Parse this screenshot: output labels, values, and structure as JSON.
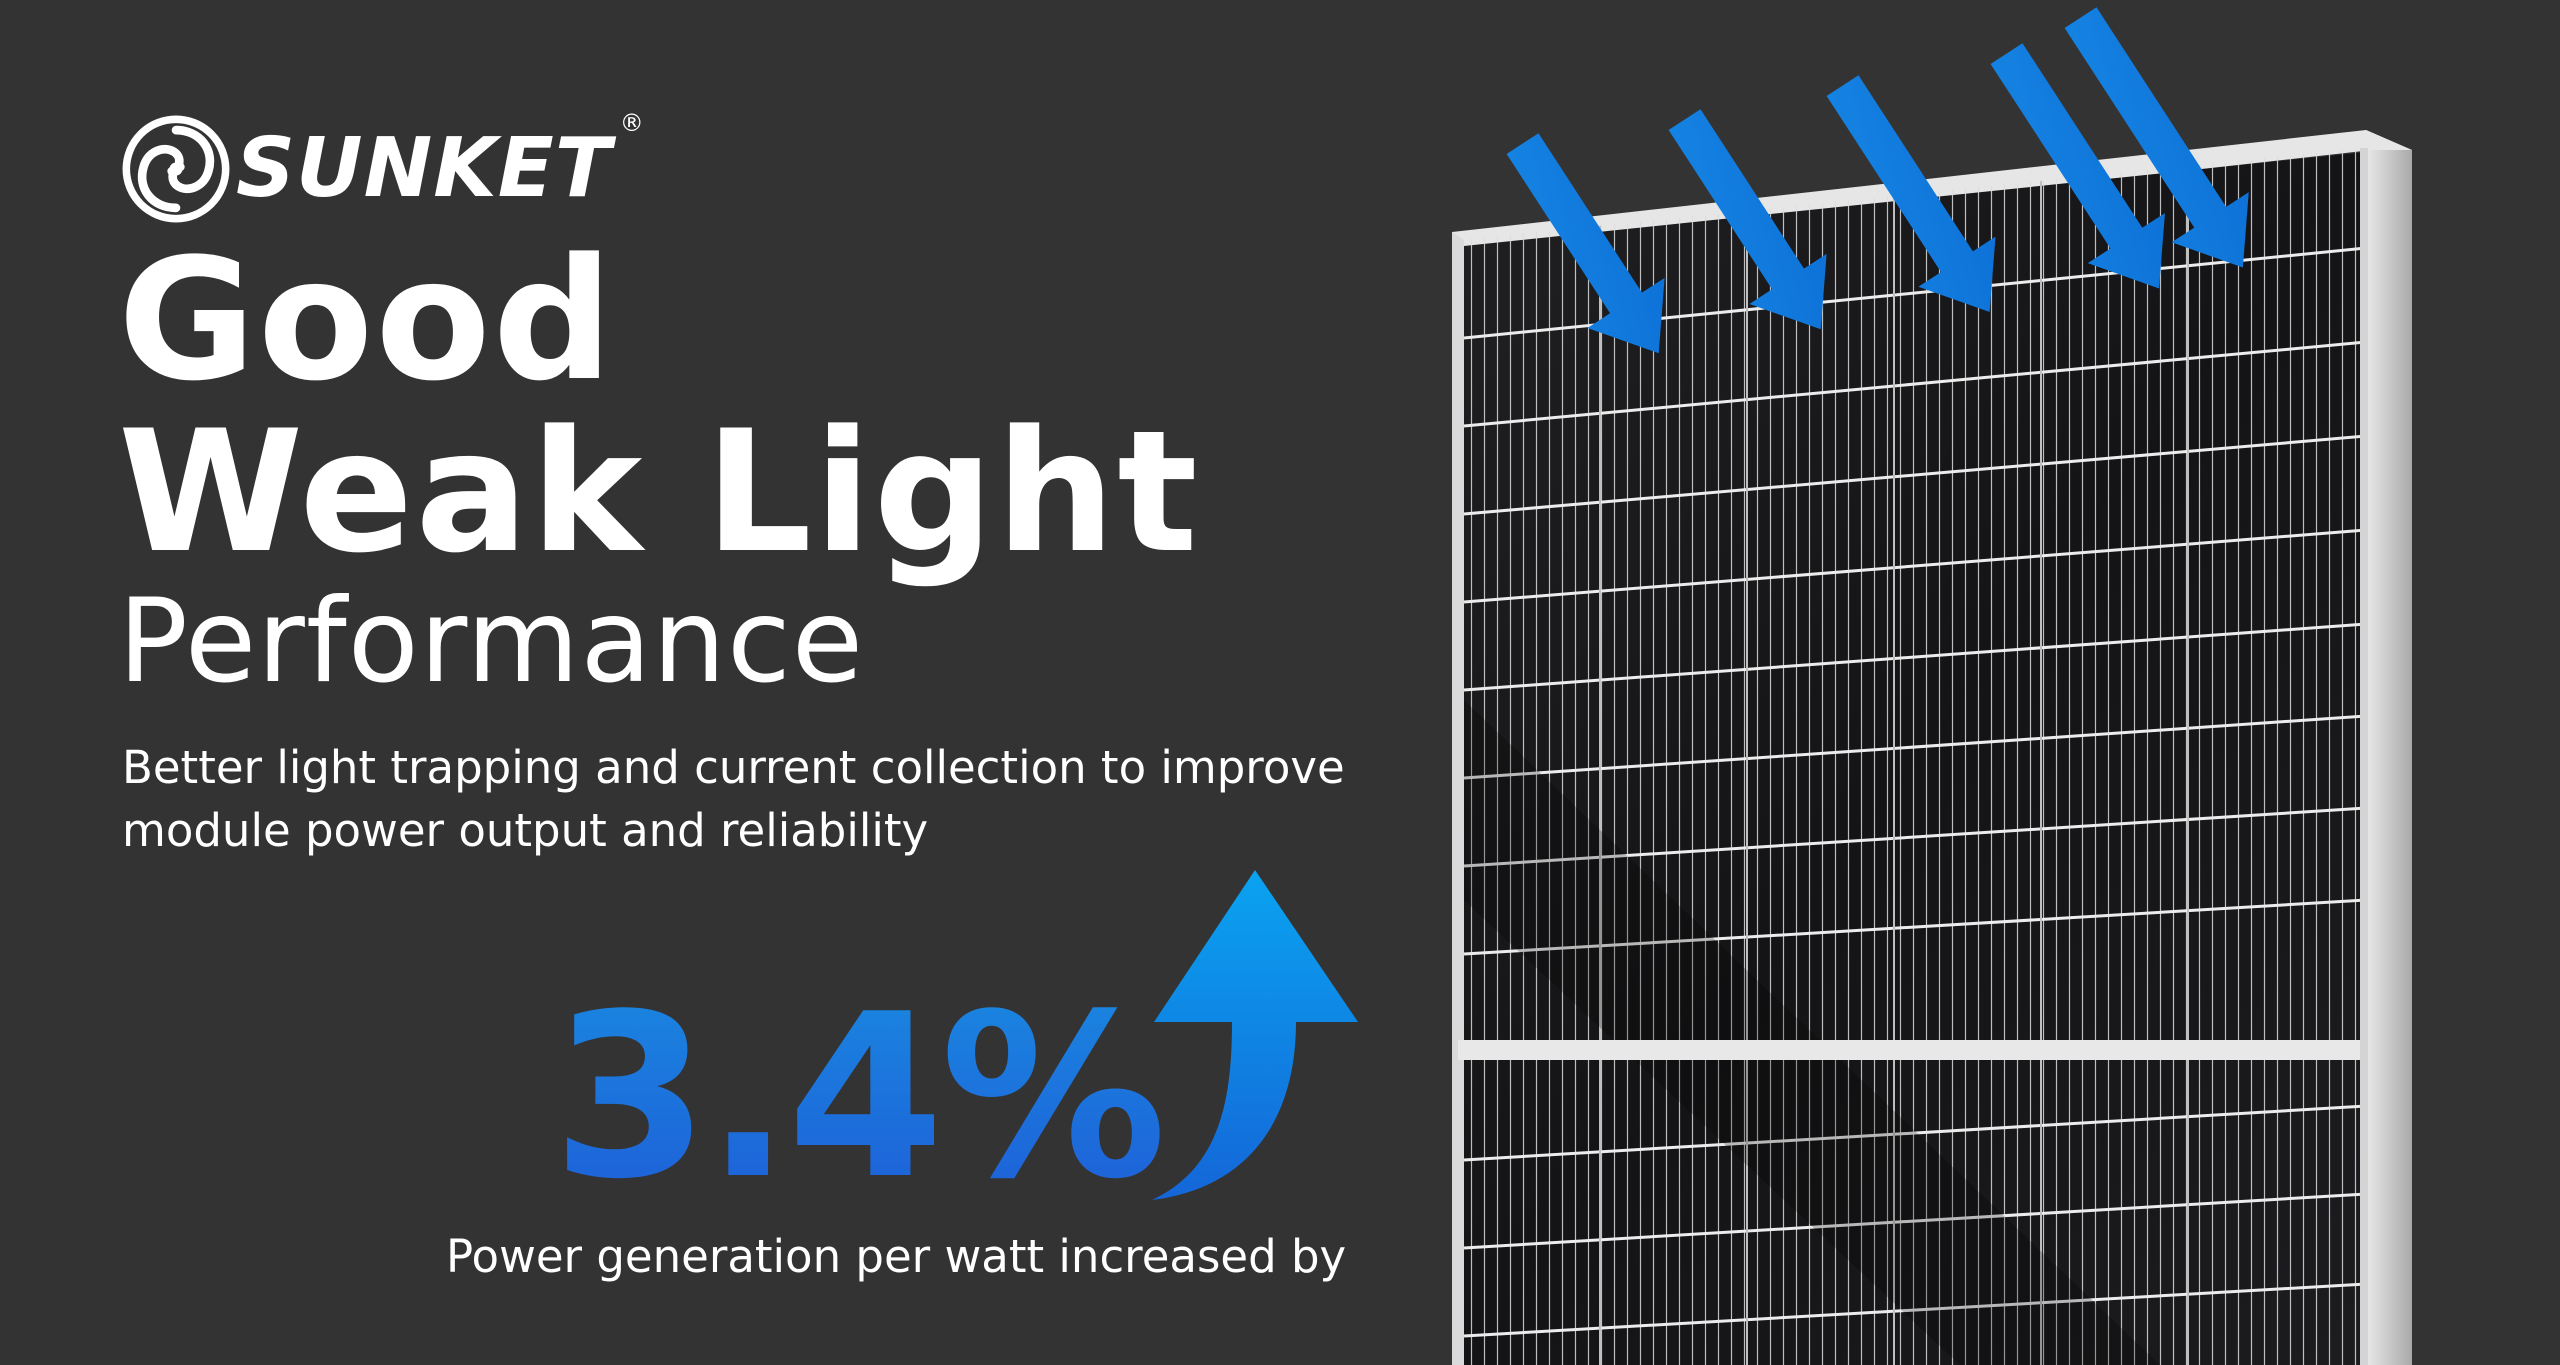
{
  "brand": {
    "name": "SUNKET",
    "registered": "®",
    "icon": "swirl-logo-icon"
  },
  "headline": {
    "line1": "Good",
    "line2": "Weak Light",
    "line3": "Performance"
  },
  "description": "Better light trapping and current collection to improve module power output and reliability",
  "stat": {
    "value": "3.4%",
    "caption": "Power generation per watt increased by"
  },
  "icons": {
    "incoming_light": "light-arrow-icon",
    "increase": "up-arrow-icon",
    "product": "solar-panel"
  },
  "colors": {
    "background": "#333333",
    "accent": "#1a7fe0",
    "text": "#ffffff"
  }
}
